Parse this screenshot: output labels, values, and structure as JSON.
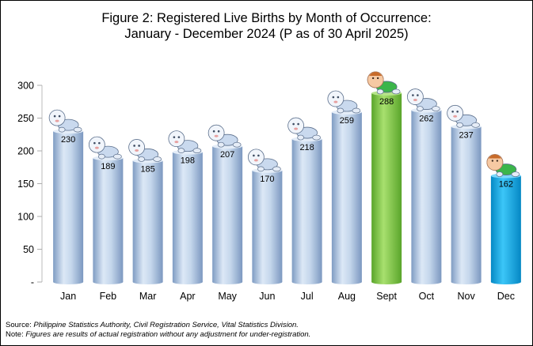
{
  "title_line1": "Figure 2: Registered Live Births by Month of Occurrence:",
  "title_line2": "January - December 2024 (P as of 30 April 2025)",
  "source_label": "Source:",
  "source_text": "Philippine Statistics Authority, Civil Registration Service, Vital Statistics Division.",
  "note_label": "Note:",
  "note_text": "Figures are results of actual registration without any adjustment for under-registration.",
  "colors": {
    "default_bar": "#b8cde6",
    "highest_bar": "#8fd14f",
    "lowest_bar": "#12aef0"
  },
  "chart_data": {
    "type": "bar",
    "title": "Figure 2: Registered Live Births by Month of Occurrence: January - December 2024 (P as of 30 April 2025)",
    "xlabel": "",
    "ylabel": "",
    "ylim": [
      0,
      300
    ],
    "yticks": [
      0,
      50,
      100,
      150,
      200,
      250,
      300
    ],
    "ytick_labels": [
      "-",
      "50",
      "100",
      "150",
      "200",
      "250",
      "300"
    ],
    "categories": [
      "Jan",
      "Feb",
      "Mar",
      "Apr",
      "May",
      "Jun",
      "Jul",
      "Aug",
      "Sept",
      "Oct",
      "Nov",
      "Dec"
    ],
    "values": [
      230,
      189,
      185,
      198,
      207,
      170,
      218,
      259,
      288,
      262,
      237,
      162
    ],
    "value_labels": [
      "230",
      "189",
      "185",
      "198",
      "207",
      "170",
      "218",
      "259",
      "288",
      "262",
      "237",
      "162"
    ],
    "highlight": {
      "Sept": "highest",
      "Dec": "lowest"
    },
    "grid": false,
    "legend": "none"
  }
}
